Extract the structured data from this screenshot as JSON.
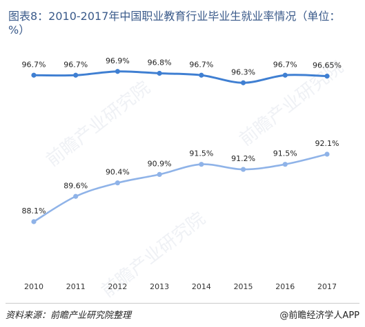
{
  "title": "图表8：2010-2017年中国职业教育行业毕业生就业率情况（单位：%）",
  "footer": {
    "source": "资料来源：前瞻产业研究院整理",
    "brand": "@前瞻经济学人APP"
  },
  "watermark": "前瞻产业研究院",
  "chart_data": {
    "type": "line",
    "title": "图表8：2010-2017年中国职业教育行业毕业生就业率情况（单位：%）",
    "categories": [
      "2010",
      "2011",
      "2012",
      "2013",
      "2014",
      "2015",
      "2016",
      "2017"
    ],
    "series": [
      {
        "values": [
          96.7,
          96.7,
          96.9,
          96.8,
          96.7,
          96.3,
          96.7,
          96.65
        ],
        "labels": [
          "96.7%",
          "96.7%",
          "96.9%",
          "96.8%",
          "96.7%",
          "96.3%",
          "96.7%",
          "96.65%"
        ],
        "color": "#3f7fd2"
      },
      {
        "values": [
          88.1,
          89.6,
          90.4,
          90.9,
          91.5,
          91.2,
          91.5,
          92.1
        ],
        "labels": [
          "88.1%",
          "89.6%",
          "90.4%",
          "90.9%",
          "91.5%",
          "91.2%",
          "91.5%",
          "92.1%"
        ],
        "color": "#8fb3e8"
      }
    ],
    "grid": false,
    "legend": "none"
  }
}
